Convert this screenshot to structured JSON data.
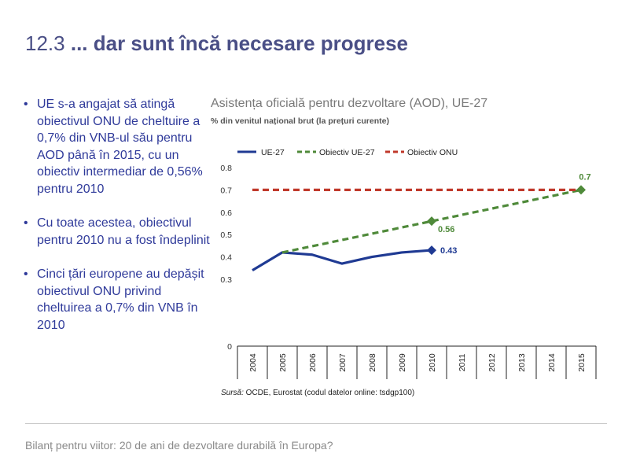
{
  "header": {
    "number": "12.3",
    "title": "... dar sunt încă necesare progrese"
  },
  "bullets": [
    "UE s-a angajat să atingă obiectivul ONU de cheltuire a 0,7% din VNB-ul său pentru AOD până în 2015, cu un obiectiv intermediar de 0,56% pentru 2010",
    "Cu toate acestea, obiectivul pentru 2010 nu a fost îndeplinit",
    "Cinci țări europene au depășit obiectivul ONU privind cheltuirea a 0,7% din VNB în 2010"
  ],
  "chart_data": {
    "type": "line",
    "title": "Asistența oficială pentru dezvoltare (AOD), UE-27",
    "subtitle": "% din venitul național brut (la prețuri curente)",
    "categories": [
      "2004",
      "2005",
      "2006",
      "2007",
      "2008",
      "2009",
      "2010",
      "2011",
      "2012",
      "2013",
      "2014",
      "2015"
    ],
    "ylim": [
      0,
      0.8
    ],
    "yticks": [
      "0",
      "0.3",
      "0.4",
      "0.5",
      "0.6",
      "0.7",
      "0.8"
    ],
    "ytick_values": [
      0,
      0.3,
      0.4,
      0.5,
      0.6,
      0.7,
      0.8
    ],
    "legend_position": "top",
    "series": [
      {
        "name": "UE-27",
        "color": "#1f3a93",
        "style": "solid",
        "points": [
          [
            "2004",
            0.34
          ],
          [
            "2005",
            0.42
          ],
          [
            "2006",
            0.41
          ],
          [
            "2007",
            0.37
          ],
          [
            "2008",
            0.4
          ],
          [
            "2009",
            0.42
          ],
          [
            "2010",
            0.43
          ]
        ],
        "end_label": "0.43"
      },
      {
        "name": "Obiectiv UE-27",
        "color": "#4f8a3a",
        "style": "dashed",
        "points": [
          [
            "2005",
            0.42
          ],
          [
            "2010",
            0.56
          ],
          [
            "2015",
            0.7
          ]
        ],
        "marked_labels": [
          [
            "2010",
            "0.56"
          ],
          [
            "2015",
            "0.7"
          ]
        ]
      },
      {
        "name": "Obiectiv ONU",
        "color": "#c0392b",
        "style": "dashed",
        "points": [
          [
            "2004",
            0.7
          ],
          [
            "2015",
            0.7
          ]
        ]
      }
    ]
  },
  "source": {
    "label": "Sursă:",
    "text": " OCDE, Eurostat (codul datelor online: tsdgp100)"
  },
  "footer": {
    "text": "Bilanț pentru viitor: 20 de ani de dezvoltare durabilă în Europa?"
  }
}
